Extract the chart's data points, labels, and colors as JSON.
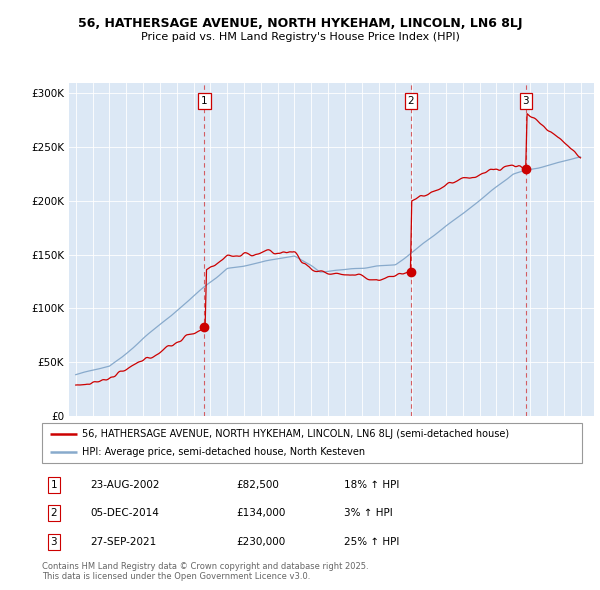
{
  "title_line1": "56, HATHERSAGE AVENUE, NORTH HYKEHAM, LINCOLN, LN6 8LJ",
  "title_line2": "Price paid vs. HM Land Registry's House Price Index (HPI)",
  "plot_bg_color": "#dce8f5",
  "red_line_color": "#cc0000",
  "blue_line_color": "#88aacc",
  "ylim": [
    0,
    310000
  ],
  "yticks": [
    0,
    50000,
    100000,
    150000,
    200000,
    250000,
    300000
  ],
  "ytick_labels": [
    "£0",
    "£50K",
    "£100K",
    "£150K",
    "£200K",
    "£250K",
    "£300K"
  ],
  "sales": [
    {
      "num": 1,
      "date": "23-AUG-2002",
      "price": 82500,
      "pct": "18%",
      "direction": "↑",
      "year": 2002.65
    },
    {
      "num": 2,
      "date": "05-DEC-2014",
      "price": 134000,
      "pct": "3%",
      "direction": "↑",
      "year": 2014.92
    },
    {
      "num": 3,
      "date": "27-SEP-2021",
      "price": 230000,
      "pct": "25%",
      "direction": "↑",
      "year": 2021.75
    }
  ],
  "legend_label_red": "56, HATHERSAGE AVENUE, NORTH HYKEHAM, LINCOLN, LN6 8LJ (semi-detached house)",
  "legend_label_blue": "HPI: Average price, semi-detached house, North Kesteven",
  "footer1": "Contains HM Land Registry data © Crown copyright and database right 2025.",
  "footer2": "This data is licensed under the Open Government Licence v3.0.",
  "xmin": 1995,
  "xmax": 2025
}
